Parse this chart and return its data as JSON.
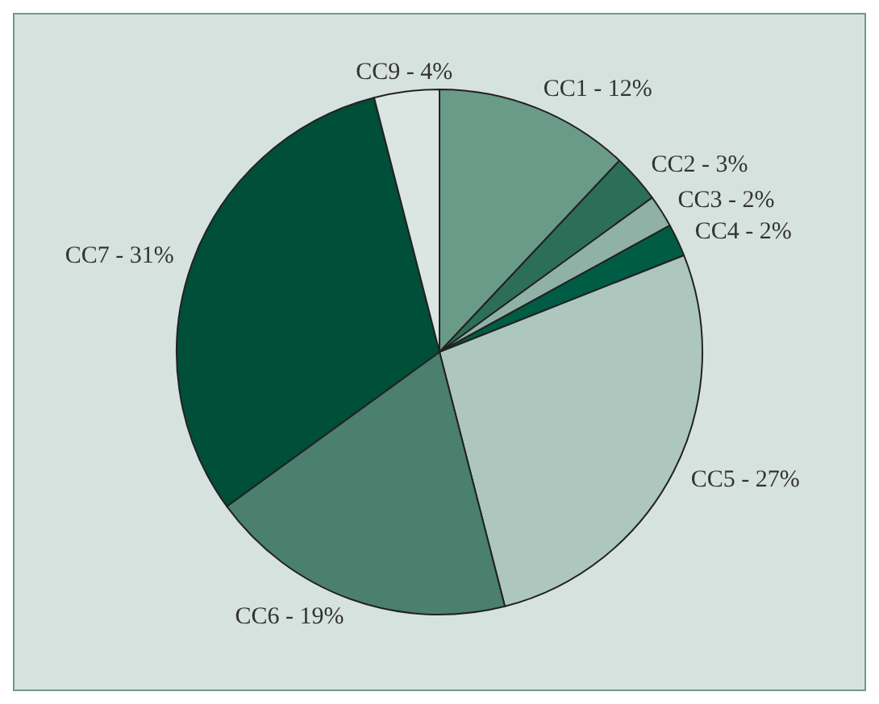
{
  "chart_data": {
    "type": "pie",
    "categories": [
      "CC1 - 12%",
      "CC2 - 3%",
      "CC3 - 2%",
      "CC4 - 2%",
      "CC5 - 27%",
      "CC6 - 19%",
      "CC7 - 31%",
      "CC9 - 4%"
    ],
    "values": [
      12,
      3,
      2,
      2,
      27,
      19,
      31,
      4
    ],
    "colors": [
      "#6a9a88",
      "#2d6e58",
      "#8fb1a6",
      "#005c45",
      "#adc7bf",
      "#4a806d",
      "#004f38",
      "#dbe6e2"
    ],
    "legend": false
  }
}
